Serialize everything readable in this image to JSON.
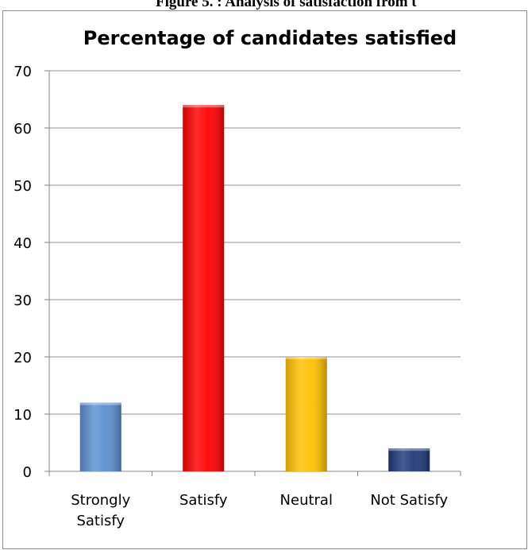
{
  "caption": "Figure 5. : Analysis of satisfaction from t",
  "chart_data": {
    "type": "bar",
    "title": "Percentage of candidates satisfied",
    "categories": [
      [
        "Strongly",
        "Satisfy"
      ],
      [
        "Satisfy"
      ],
      [
        "Neutral"
      ],
      [
        "Not Satisfy"
      ]
    ],
    "values": [
      12,
      64,
      20,
      4
    ],
    "colors": [
      "#5b8fd1",
      "#ff0000",
      "#ffc000",
      "#1f3a7a"
    ],
    "ylim": [
      0,
      70
    ],
    "yticks": [
      0,
      10,
      20,
      30,
      40,
      50,
      60,
      70
    ],
    "grid": true,
    "legend": "none"
  }
}
